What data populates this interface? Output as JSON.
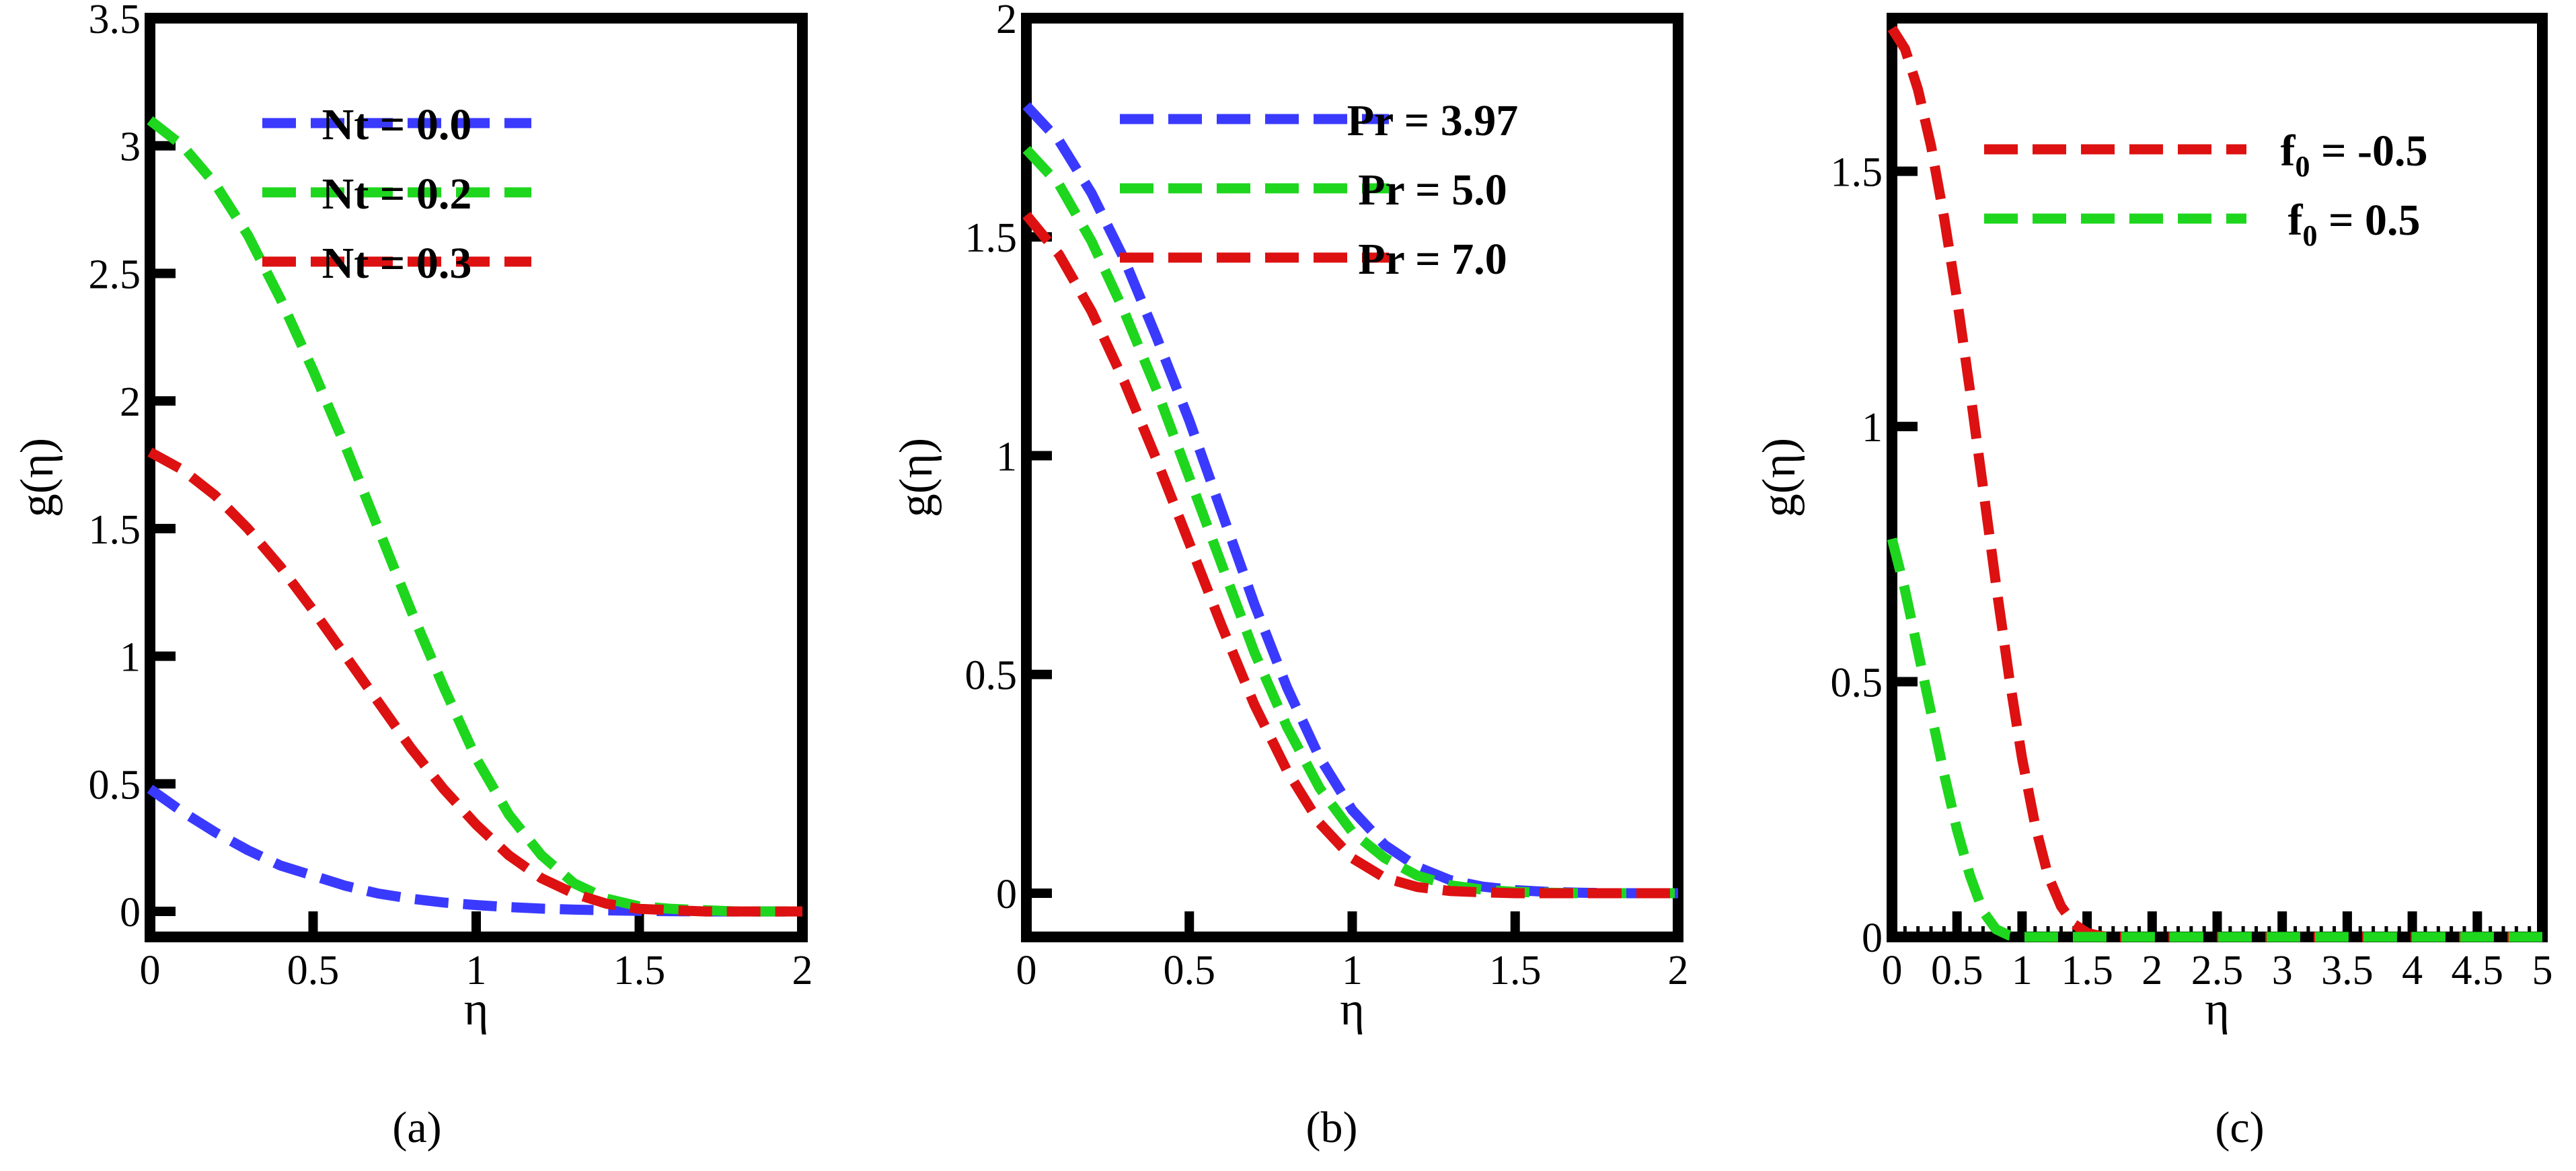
{
  "chart_data": [
    {
      "type": "line",
      "panel_label": "(a)",
      "xlabel": "η",
      "ylabel": "g(η)",
      "xlim": [
        0,
        2
      ],
      "ylim": [
        -0.1,
        3.5
      ],
      "xticks": [
        "0",
        "0.5",
        "1",
        "1.5",
        "2"
      ],
      "yticks": [
        "0",
        "0.5",
        "1",
        "1.5",
        "2",
        "2.5",
        "3",
        "3.5"
      ],
      "legend_position": "top-right",
      "series": [
        {
          "name": "Nt = 0.0",
          "color": "#3a3aff",
          "x": [
            0,
            0.1,
            0.2,
            0.3,
            0.4,
            0.5,
            0.6,
            0.7,
            0.8,
            0.9,
            1.0,
            1.1,
            1.2,
            1.3,
            1.4,
            1.5,
            1.6,
            1.7,
            1.8,
            1.9,
            2.0
          ],
          "y": [
            0.48,
            0.39,
            0.31,
            0.24,
            0.18,
            0.14,
            0.1,
            0.07,
            0.05,
            0.035,
            0.025,
            0.017,
            0.011,
            0.007,
            0.004,
            0.002,
            0.001,
            0.0,
            0.0,
            0.0,
            0.0
          ]
        },
        {
          "name": "Nt = 0.2",
          "color": "#1ed61e",
          "x": [
            0,
            0.1,
            0.2,
            0.3,
            0.4,
            0.5,
            0.6,
            0.7,
            0.8,
            0.9,
            1.0,
            1.1,
            1.2,
            1.3,
            1.4,
            1.5,
            1.6,
            1.7,
            1.8,
            1.9,
            2.0
          ],
          "y": [
            3.1,
            3.0,
            2.85,
            2.65,
            2.4,
            2.12,
            1.82,
            1.5,
            1.18,
            0.88,
            0.6,
            0.38,
            0.22,
            0.11,
            0.05,
            0.02,
            0.01,
            0.005,
            0.0,
            0.0,
            0.0
          ]
        },
        {
          "name": "Nt = 0.3",
          "color": "#dd1111",
          "x": [
            0,
            0.1,
            0.2,
            0.3,
            0.4,
            0.5,
            0.6,
            0.7,
            0.8,
            0.9,
            1.0,
            1.1,
            1.2,
            1.3,
            1.4,
            1.5,
            1.6,
            1.7,
            1.8,
            1.9,
            2.0
          ],
          "y": [
            1.8,
            1.73,
            1.63,
            1.5,
            1.35,
            1.18,
            1.0,
            0.82,
            0.64,
            0.48,
            0.34,
            0.22,
            0.13,
            0.07,
            0.03,
            0.01,
            0.005,
            0.0,
            0.0,
            0.0,
            0.0
          ]
        }
      ]
    },
    {
      "type": "line",
      "panel_label": "(b)",
      "xlabel": "η",
      "ylabel": "g(η)",
      "xlim": [
        0,
        2
      ],
      "ylim": [
        -0.1,
        2
      ],
      "xticks": [
        "0",
        "0.5",
        "1",
        "1.5",
        "2"
      ],
      "yticks": [
        "0",
        "0.5",
        "1",
        "1.5",
        "2"
      ],
      "legend_position": "top-right",
      "series": [
        {
          "name": "Pr = 3.97",
          "color": "#3a3aff",
          "x": [
            0,
            0.1,
            0.2,
            0.3,
            0.4,
            0.5,
            0.6,
            0.7,
            0.8,
            0.9,
            1.0,
            1.1,
            1.2,
            1.3,
            1.4,
            1.5,
            1.6,
            1.7,
            1.8,
            1.9,
            2.0
          ],
          "y": [
            1.8,
            1.72,
            1.6,
            1.45,
            1.27,
            1.08,
            0.87,
            0.66,
            0.47,
            0.31,
            0.19,
            0.11,
            0.06,
            0.03,
            0.015,
            0.007,
            0.003,
            0.001,
            0.0,
            0.0,
            0.0
          ]
        },
        {
          "name": "Pr = 5.0",
          "color": "#1ed61e",
          "x": [
            0,
            0.1,
            0.2,
            0.3,
            0.4,
            0.5,
            0.6,
            0.7,
            0.8,
            0.9,
            1.0,
            1.1,
            1.2,
            1.3,
            1.4,
            1.5,
            1.6,
            1.7,
            1.8,
            1.9,
            2.0
          ],
          "y": [
            1.7,
            1.62,
            1.49,
            1.33,
            1.15,
            0.95,
            0.75,
            0.55,
            0.38,
            0.24,
            0.14,
            0.08,
            0.04,
            0.018,
            0.008,
            0.003,
            0.001,
            0.0,
            0.0,
            0.0,
            0.0
          ]
        },
        {
          "name": "Pr = 7.0",
          "color": "#dd1111",
          "x": [
            0,
            0.1,
            0.2,
            0.3,
            0.4,
            0.5,
            0.6,
            0.7,
            0.8,
            0.9,
            1.0,
            1.1,
            1.2,
            1.3,
            1.4,
            1.5,
            1.6,
            1.7,
            1.8,
            1.9,
            2.0
          ],
          "y": [
            1.55,
            1.46,
            1.33,
            1.17,
            0.99,
            0.8,
            0.61,
            0.43,
            0.28,
            0.16,
            0.08,
            0.035,
            0.014,
            0.005,
            0.002,
            0.0,
            0.0,
            0.0,
            0.0,
            0.0,
            0.0
          ]
        }
      ]
    },
    {
      "type": "line",
      "panel_label": "(c)",
      "xlabel": "η",
      "ylabel": "g(η)",
      "xlim": [
        0,
        5
      ],
      "ylim": [
        0,
        1.8
      ],
      "xticks": [
        "0",
        "0.5",
        "1",
        "1.5",
        "2",
        "2.5",
        "3",
        "3.5",
        "4",
        "4.5",
        "5"
      ],
      "yticks": [
        "0",
        "0.5",
        "1",
        "1.5"
      ],
      "legend_position": "top-right",
      "series": [
        {
          "name": "f0 = -0.5",
          "name_parts": {
            "base": "f",
            "sub": "0",
            "rest": " = -0.5"
          },
          "color": "#dd1111",
          "x": [
            0,
            0.1,
            0.2,
            0.3,
            0.4,
            0.5,
            0.6,
            0.7,
            0.8,
            0.9,
            1.0,
            1.1,
            1.2,
            1.3,
            1.4,
            1.5,
            1.6,
            1.7,
            2.0,
            3.0,
            4.0,
            5.0
          ],
          "y": [
            1.78,
            1.74,
            1.66,
            1.55,
            1.41,
            1.25,
            1.07,
            0.88,
            0.69,
            0.51,
            0.35,
            0.22,
            0.12,
            0.06,
            0.025,
            0.008,
            0.002,
            0.0,
            0.0,
            0.0,
            0.0,
            0.0
          ]
        },
        {
          "name": "f0 = 0.5",
          "name_parts": {
            "base": "f",
            "sub": "0",
            "rest": " = 0.5"
          },
          "color": "#1ed61e",
          "x": [
            0,
            0.1,
            0.2,
            0.3,
            0.4,
            0.5,
            0.6,
            0.7,
            0.8,
            0.9,
            1.0,
            2.0,
            3.0,
            4.0,
            5.0
          ],
          "y": [
            0.78,
            0.68,
            0.56,
            0.44,
            0.32,
            0.21,
            0.12,
            0.05,
            0.015,
            0.003,
            0.0,
            0.0,
            0.0,
            0.0,
            0.0
          ]
        }
      ]
    }
  ]
}
